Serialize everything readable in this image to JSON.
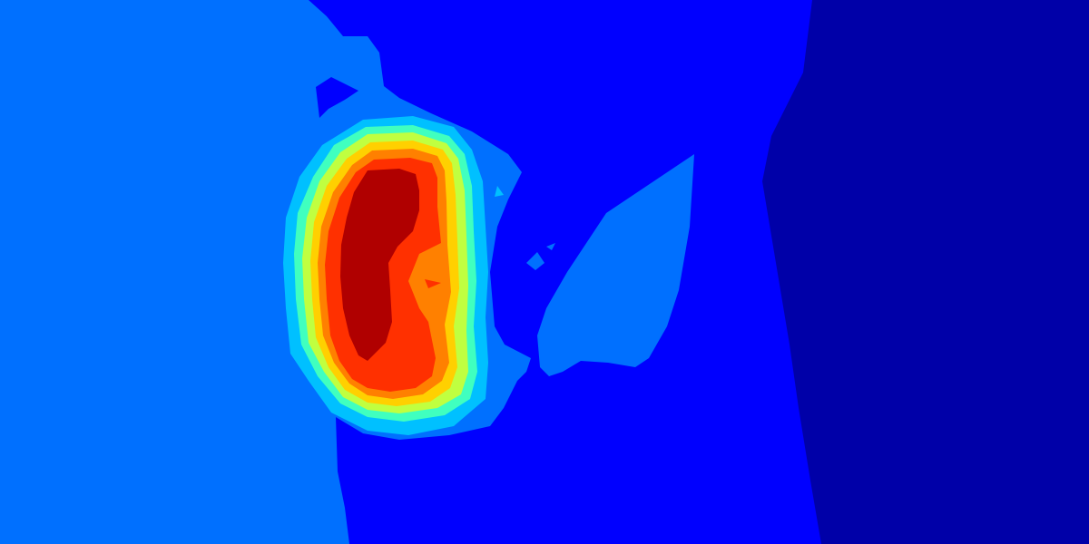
{
  "chart_data": {
    "type": "heatmap",
    "style": "filled-contour",
    "axes_visible": false,
    "legend": "none",
    "grid": false,
    "colormap": "jet",
    "levels": [
      {
        "level": 0,
        "color": "#0000a8"
      },
      {
        "level": 1,
        "color": "#0000ff"
      },
      {
        "level": 2,
        "color": "#0070ff"
      },
      {
        "level": 3,
        "color": "#00c0ff"
      },
      {
        "level": 4,
        "color": "#40ffbf"
      },
      {
        "level": 5,
        "color": "#c0ff40"
      },
      {
        "level": 6,
        "color": "#ffd000"
      },
      {
        "level": 7,
        "color": "#ff8000"
      },
      {
        "level": 8,
        "color": "#ff3000"
      },
      {
        "level": 9,
        "color": "#b00000"
      }
    ],
    "regions": [
      {
        "name": "background-high-right",
        "level": 0
      },
      {
        "name": "mid-band",
        "level": 1
      },
      {
        "name": "left-plateau",
        "level": 2
      },
      {
        "name": "secondary-lobe",
        "level": 2
      },
      {
        "name": "hotspot-ring-3",
        "level": 3
      },
      {
        "name": "hotspot-ring-4",
        "level": 4
      },
      {
        "name": "hotspot-ring-5",
        "level": 5
      },
      {
        "name": "hotspot-ring-6",
        "level": 6
      },
      {
        "name": "hotspot-ring-7",
        "level": 7
      },
      {
        "name": "hotspot-ring-8",
        "level": 8
      },
      {
        "name": "hotspot-core",
        "level": 9
      }
    ]
  }
}
